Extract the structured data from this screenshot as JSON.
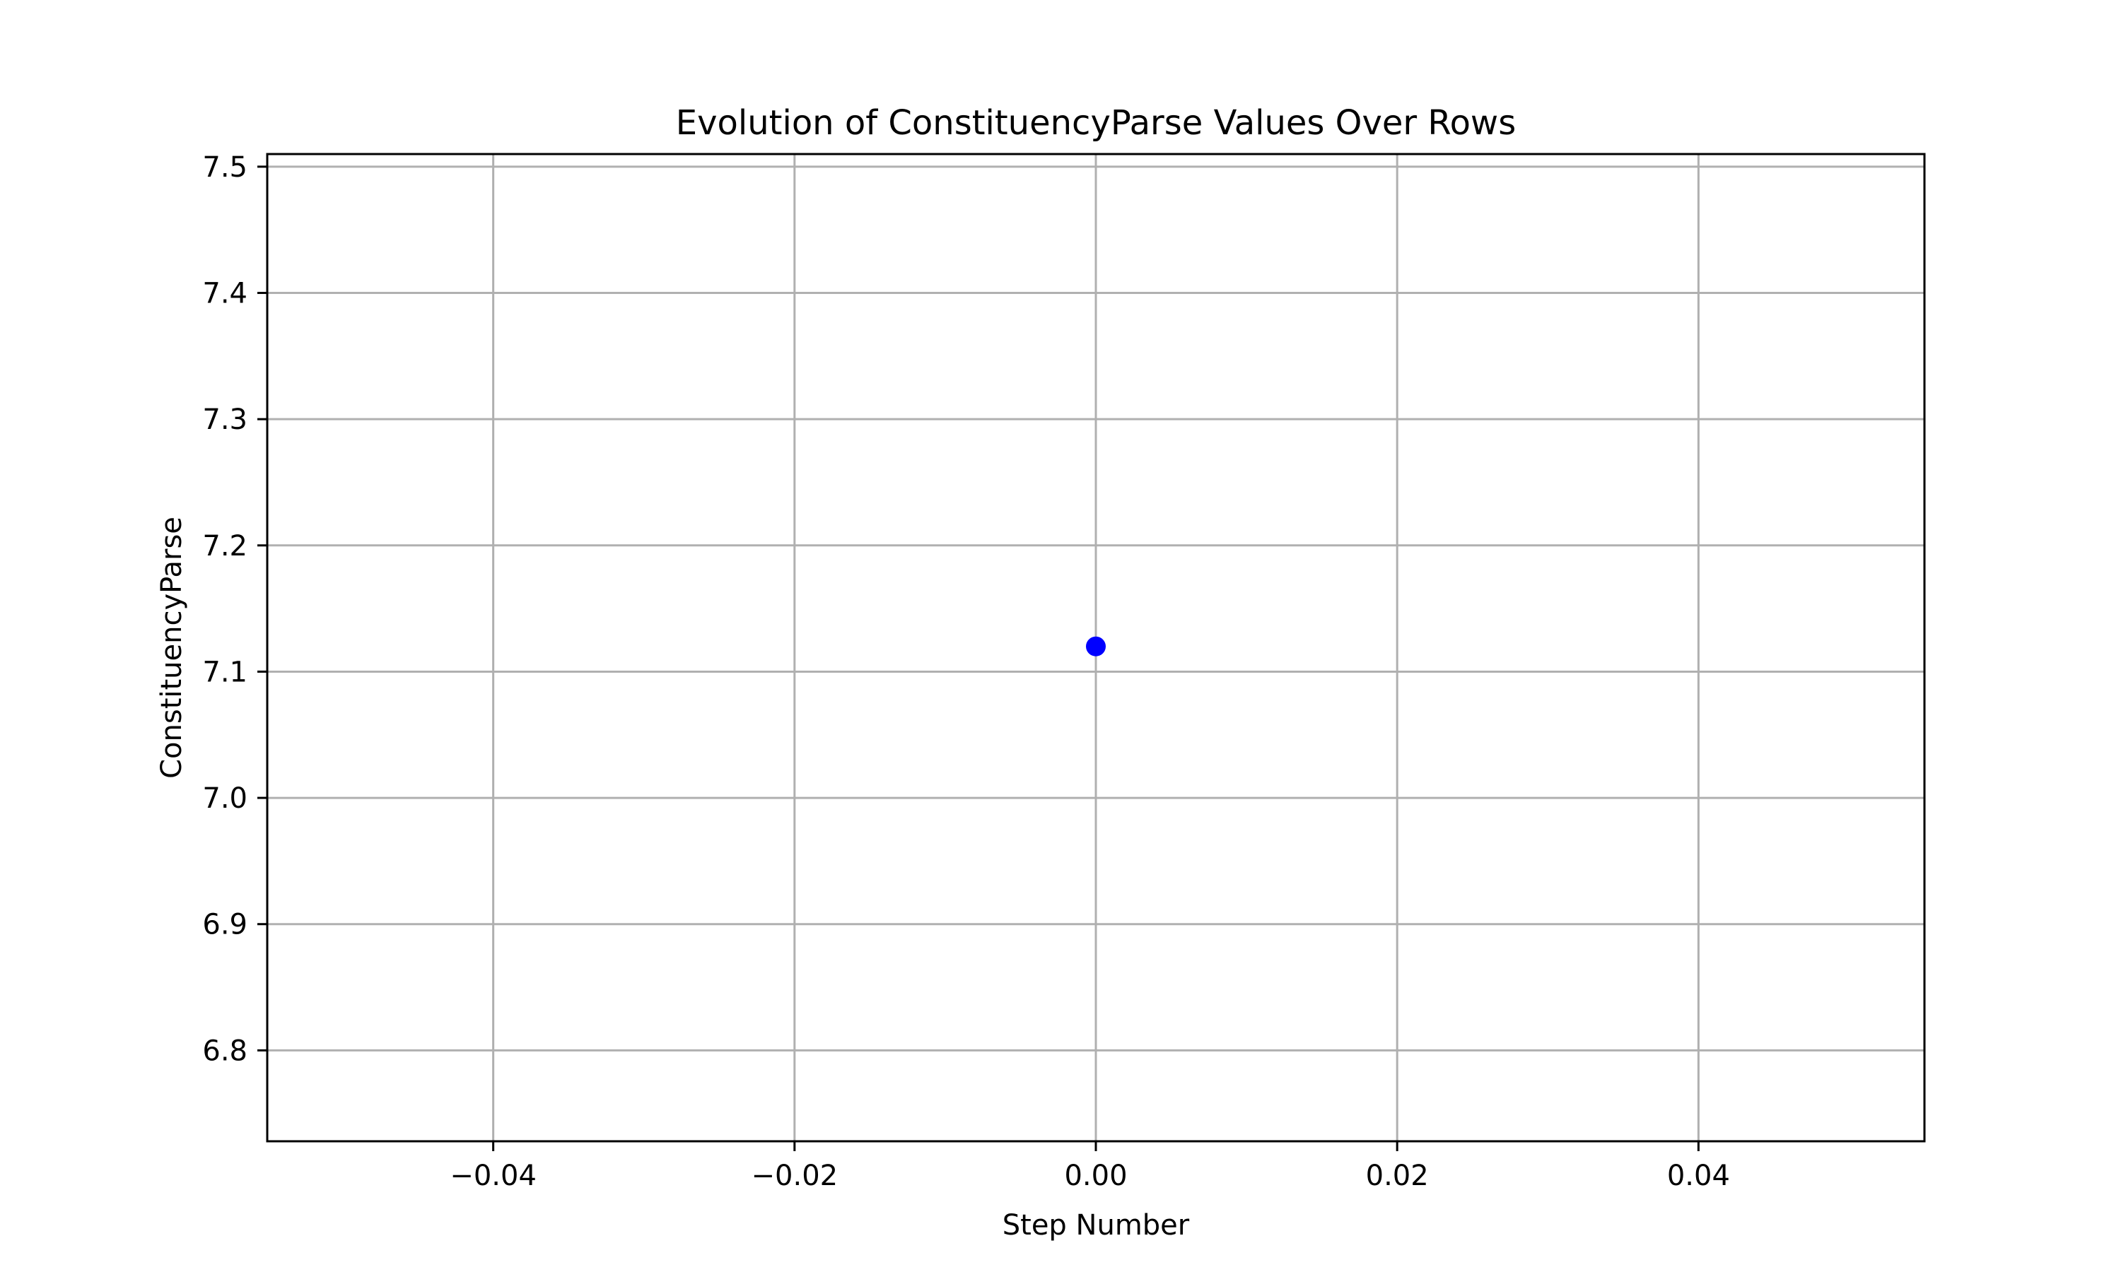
{
  "chart_data": {
    "type": "scatter",
    "title": "Evolution of ConstituencyParse Values Over Rows",
    "xlabel": "Step Number",
    "ylabel": "ConstituencyParse",
    "xlim": [
      -0.055,
      0.055
    ],
    "ylim": [
      6.728,
      7.51
    ],
    "x_ticks": [
      -0.04,
      -0.02,
      0.0,
      0.02,
      0.04
    ],
    "x_tick_labels": [
      "−0.04",
      "−0.02",
      "0.00",
      "0.02",
      "0.04"
    ],
    "y_ticks": [
      6.8,
      6.9,
      7.0,
      7.1,
      7.2,
      7.3,
      7.4,
      7.5
    ],
    "y_tick_labels": [
      "6.8",
      "6.9",
      "7.0",
      "7.1",
      "7.2",
      "7.3",
      "7.4",
      "7.5"
    ],
    "grid": true,
    "series": [
      {
        "x": [
          0.0
        ],
        "y": [
          7.12
        ],
        "color": "#0000ff",
        "marker": "circle"
      }
    ]
  }
}
